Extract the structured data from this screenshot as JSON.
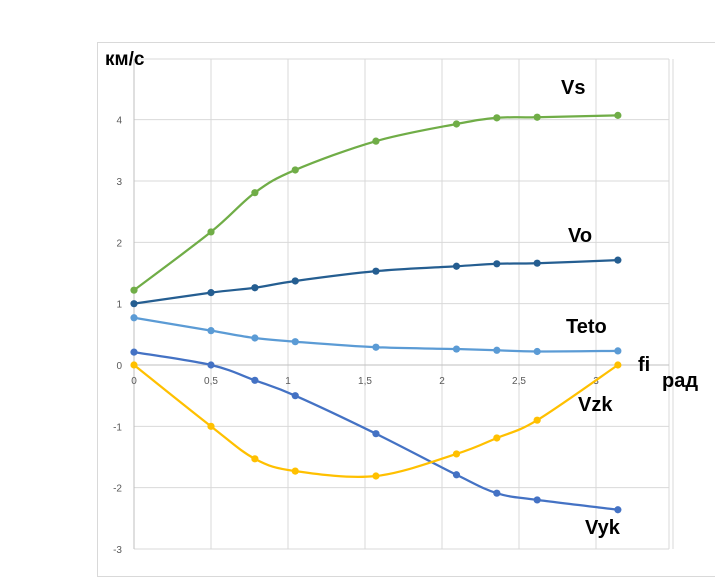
{
  "chart_data": {
    "type": "line",
    "title": "",
    "xlabel": "fi рад",
    "ylabel": "км/с",
    "xlim": [
      0,
      3.4
    ],
    "ylim": [
      -3,
      5
    ],
    "x_ticks": [
      "0",
      "0,5",
      "1",
      "1,5",
      "2",
      "2,5",
      "3"
    ],
    "y_ticks": [
      "-3",
      "-2",
      "-1",
      "0",
      "1",
      "2",
      "3",
      "4"
    ],
    "grid": true,
    "legend": "inline labels",
    "x": [
      0,
      0.5,
      0.785,
      1.047,
      1.571,
      2.094,
      2.356,
      2.618,
      3.142
    ],
    "series": [
      {
        "name": "Vs",
        "color": "#70ad47",
        "values": [
          1.22,
          2.17,
          2.81,
          3.18,
          3.65,
          3.93,
          4.03,
          4.04,
          4.07
        ]
      },
      {
        "name": "Vo",
        "color": "#255e91",
        "values": [
          1.0,
          1.18,
          1.26,
          1.37,
          1.53,
          1.61,
          1.65,
          1.66,
          1.71
        ]
      },
      {
        "name": "Teto",
        "color": "#5b9bd5",
        "values": [
          0.77,
          0.56,
          0.44,
          0.38,
          0.29,
          0.26,
          0.24,
          0.22,
          0.23
        ]
      },
      {
        "name": "Vyk",
        "color": "#4472c4",
        "values": [
          0.21,
          0.0,
          -0.25,
          -0.5,
          -1.12,
          -1.79,
          -2.09,
          -2.2,
          -2.36
        ]
      },
      {
        "name": "Vzk",
        "color": "#ffc000",
        "values": [
          0.0,
          -1.0,
          -1.53,
          -1.73,
          -1.81,
          -1.45,
          -1.19,
          -0.9,
          0.0
        ]
      }
    ]
  },
  "labels": {
    "y_unit": "км/с",
    "x_var": "fi",
    "x_unit": "рад",
    "Vs": "Vs",
    "Vo": "Vo",
    "Teto": "Teto",
    "Vzk": "Vzk",
    "Vyk": "Vyk"
  }
}
